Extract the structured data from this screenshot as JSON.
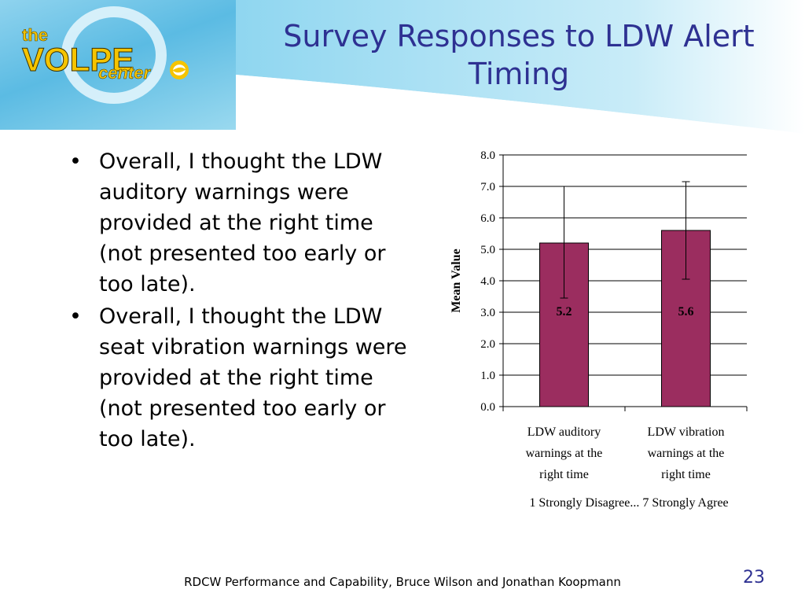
{
  "slide": {
    "title": "Survey Responses to LDW Alert Timing",
    "bullets": [
      "Overall, I thought the LDW auditory warnings were provided at the right time (not presented too early or too late).",
      "Overall, I thought the LDW seat vibration warnings were provided at the right time (not presented too early or too late)."
    ],
    "footer": "RDCW Performance and Capability, Bruce Wilson and Jonathan Koopmann",
    "page_number": "23"
  },
  "logo": {
    "text_the": "the",
    "text_volpe": "VOLPE",
    "text_center": "center",
    "icon": "swirl-icon"
  },
  "colors": {
    "title": "#2e3192",
    "bar": "#9b2d5f",
    "logo_blue": "#5bbbe3",
    "logo_yellow": "#f5c400"
  },
  "chart_data": {
    "type": "bar",
    "categories": [
      "LDW auditory warnings at the right time",
      "LDW vibration warnings at the right time"
    ],
    "category_lines": [
      [
        "LDW auditory",
        "warnings at the",
        "right time"
      ],
      [
        "LDW vibration",
        "warnings at the",
        "right time"
      ]
    ],
    "values": [
      5.2,
      5.6
    ],
    "data_labels": [
      "5.2",
      "5.6"
    ],
    "error_bars": [
      [
        3.45,
        7.0
      ],
      [
        4.05,
        7.15
      ]
    ],
    "ylabel": "Mean Value",
    "xlabel": "1 Strongly Disagree... 7 Strongly Agree",
    "ylim": [
      0,
      8
    ],
    "yticks": [
      "0.0",
      "1.0",
      "2.0",
      "3.0",
      "4.0",
      "5.0",
      "6.0",
      "7.0",
      "8.0"
    ],
    "grid": true
  }
}
